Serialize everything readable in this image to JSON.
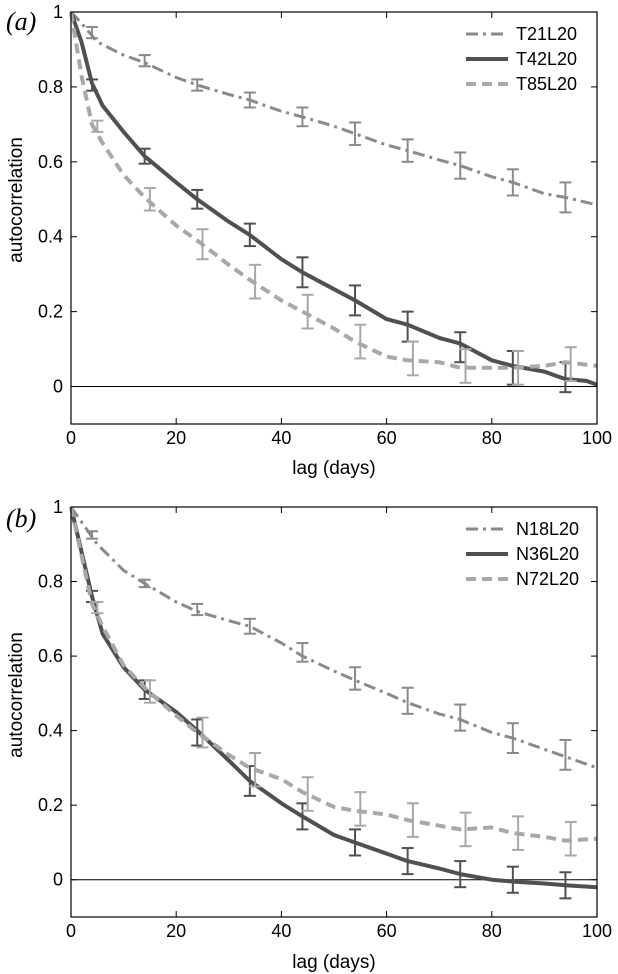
{
  "chart_data": [
    {
      "type": "line",
      "panel_label": "(a)",
      "xlabel": "lag (days)",
      "ylabel": "autocorrelation",
      "xlim": [
        0,
        100
      ],
      "ylim": [
        -0.1,
        1
      ],
      "xticks": [
        "0",
        "20",
        "40",
        "60",
        "80",
        "100"
      ],
      "yticks": [
        "0",
        "0.2",
        "0.4",
        "0.6",
        "0.8",
        "1"
      ],
      "zero_line": true,
      "legend_position": "top-right",
      "series": [
        {
          "name": "T21L20",
          "style": "dashdot",
          "color": "#8a8a8a",
          "x": [
            0,
            2,
            5,
            10,
            14,
            20,
            24,
            30,
            34,
            40,
            44,
            50,
            54,
            60,
            64,
            70,
            74,
            80,
            84,
            90,
            94,
            100
          ],
          "y": [
            1.0,
            0.97,
            0.92,
            0.885,
            0.865,
            0.825,
            0.805,
            0.78,
            0.765,
            0.735,
            0.72,
            0.695,
            0.675,
            0.645,
            0.63,
            0.605,
            0.59,
            0.56,
            0.545,
            0.515,
            0.505,
            0.485
          ],
          "error_x": [
            4,
            14,
            24,
            34,
            44,
            54,
            64,
            74,
            84,
            94
          ],
          "error_y": [
            0.945,
            0.87,
            0.805,
            0.765,
            0.72,
            0.675,
            0.63,
            0.59,
            0.545,
            0.505
          ],
          "error_half": [
            0.015,
            0.015,
            0.015,
            0.02,
            0.025,
            0.03,
            0.03,
            0.035,
            0.035,
            0.04
          ]
        },
        {
          "name": "T42L20",
          "style": "solid",
          "color": "#505050",
          "x": [
            0,
            2,
            4,
            6,
            10,
            14,
            20,
            24,
            30,
            34,
            40,
            44,
            50,
            54,
            60,
            64,
            70,
            74,
            80,
            84,
            90,
            94,
            98,
            100
          ],
          "y": [
            1.0,
            0.92,
            0.81,
            0.75,
            0.68,
            0.615,
            0.545,
            0.5,
            0.44,
            0.405,
            0.34,
            0.305,
            0.26,
            0.23,
            0.18,
            0.165,
            0.13,
            0.115,
            0.07,
            0.055,
            0.04,
            0.02,
            0.015,
            0.005
          ],
          "error_x": [
            4,
            14,
            24,
            34,
            44,
            54,
            64,
            74,
            84,
            94
          ],
          "error_y": [
            0.805,
            0.615,
            0.5,
            0.405,
            0.305,
            0.23,
            0.16,
            0.105,
            0.05,
            0.025
          ],
          "error_half": [
            0.015,
            0.02,
            0.025,
            0.03,
            0.04,
            0.04,
            0.04,
            0.04,
            0.045,
            0.04
          ]
        },
        {
          "name": "T85L20",
          "style": "dashed",
          "color": "#a8a8a8",
          "x": [
            0,
            2,
            4,
            6,
            10,
            14,
            20,
            24,
            30,
            34,
            40,
            44,
            50,
            54,
            60,
            64,
            70,
            74,
            80,
            84,
            90,
            94,
            100
          ],
          "y": [
            1.0,
            0.83,
            0.7,
            0.65,
            0.565,
            0.505,
            0.43,
            0.39,
            0.325,
            0.285,
            0.23,
            0.2,
            0.155,
            0.12,
            0.08,
            0.07,
            0.065,
            0.05,
            0.05,
            0.05,
            0.055,
            0.065,
            0.055
          ],
          "error_x": [
            5,
            15,
            25,
            35,
            45,
            55,
            65,
            75,
            85,
            95
          ],
          "error_y": [
            0.695,
            0.5,
            0.38,
            0.28,
            0.2,
            0.12,
            0.075,
            0.055,
            0.05,
            0.06
          ],
          "error_half": [
            0.015,
            0.03,
            0.04,
            0.045,
            0.045,
            0.045,
            0.045,
            0.045,
            0.045,
            0.045
          ]
        }
      ]
    },
    {
      "type": "line",
      "panel_label": "(b)",
      "xlabel": "lag (days)",
      "ylabel": "autocorrelation",
      "xlim": [
        0,
        100
      ],
      "ylim": [
        -0.1,
        1
      ],
      "xticks": [
        "0",
        "20",
        "40",
        "60",
        "80",
        "100"
      ],
      "yticks": [
        "0",
        "0.2",
        "0.4",
        "0.6",
        "0.8",
        "1"
      ],
      "zero_line": true,
      "legend_position": "top-right",
      "series": [
        {
          "name": "N18L20",
          "style": "dashdot",
          "color": "#8a8a8a",
          "x": [
            0,
            2,
            5,
            10,
            14,
            20,
            24,
            30,
            34,
            40,
            44,
            50,
            54,
            60,
            64,
            70,
            74,
            80,
            84,
            90,
            94,
            100
          ],
          "y": [
            1.0,
            0.96,
            0.9,
            0.83,
            0.795,
            0.745,
            0.72,
            0.695,
            0.68,
            0.635,
            0.6,
            0.56,
            0.535,
            0.5,
            0.475,
            0.445,
            0.43,
            0.395,
            0.38,
            0.35,
            0.33,
            0.3
          ],
          "error_x": [
            4,
            14,
            24,
            34,
            44,
            54,
            64,
            74,
            84,
            94
          ],
          "error_y": [
            0.925,
            0.795,
            0.725,
            0.68,
            0.61,
            0.54,
            0.48,
            0.435,
            0.38,
            0.335
          ],
          "error_half": [
            0.01,
            0.01,
            0.015,
            0.02,
            0.025,
            0.03,
            0.035,
            0.035,
            0.04,
            0.04
          ]
        },
        {
          "name": "N36L20",
          "style": "solid",
          "color": "#505050",
          "x": [
            0,
            2,
            4,
            6,
            10,
            14,
            20,
            24,
            30,
            34,
            40,
            44,
            50,
            54,
            60,
            64,
            70,
            74,
            80,
            84,
            90,
            94,
            100
          ],
          "y": [
            1.0,
            0.88,
            0.76,
            0.66,
            0.57,
            0.51,
            0.45,
            0.4,
            0.32,
            0.265,
            0.205,
            0.17,
            0.12,
            0.1,
            0.07,
            0.05,
            0.03,
            0.015,
            0.0,
            -0.005,
            -0.01,
            -0.015,
            -0.02
          ],
          "error_x": [
            4,
            14,
            24,
            34,
            44,
            54,
            64,
            74,
            84,
            94
          ],
          "error_y": [
            0.76,
            0.51,
            0.395,
            0.265,
            0.17,
            0.1,
            0.05,
            0.015,
            0.0,
            -0.015
          ],
          "error_half": [
            0.015,
            0.025,
            0.035,
            0.04,
            0.035,
            0.035,
            0.035,
            0.035,
            0.035,
            0.035
          ]
        },
        {
          "name": "N72L20",
          "style": "dashed",
          "color": "#a8a8a8",
          "x": [
            0,
            2,
            4,
            6,
            10,
            14,
            20,
            24,
            30,
            34,
            40,
            44,
            50,
            54,
            60,
            64,
            70,
            74,
            80,
            84,
            90,
            94,
            100
          ],
          "y": [
            1.0,
            0.87,
            0.74,
            0.68,
            0.575,
            0.515,
            0.44,
            0.395,
            0.335,
            0.3,
            0.27,
            0.235,
            0.195,
            0.185,
            0.175,
            0.16,
            0.145,
            0.135,
            0.14,
            0.125,
            0.115,
            0.105,
            0.11
          ],
          "error_x": [
            5,
            15,
            25,
            35,
            45,
            55,
            65,
            75,
            85,
            95
          ],
          "error_y": [
            0.73,
            0.505,
            0.395,
            0.295,
            0.23,
            0.19,
            0.16,
            0.135,
            0.125,
            0.11
          ],
          "error_half": [
            0.015,
            0.03,
            0.04,
            0.045,
            0.045,
            0.045,
            0.045,
            0.045,
            0.045,
            0.045
          ]
        }
      ]
    }
  ]
}
